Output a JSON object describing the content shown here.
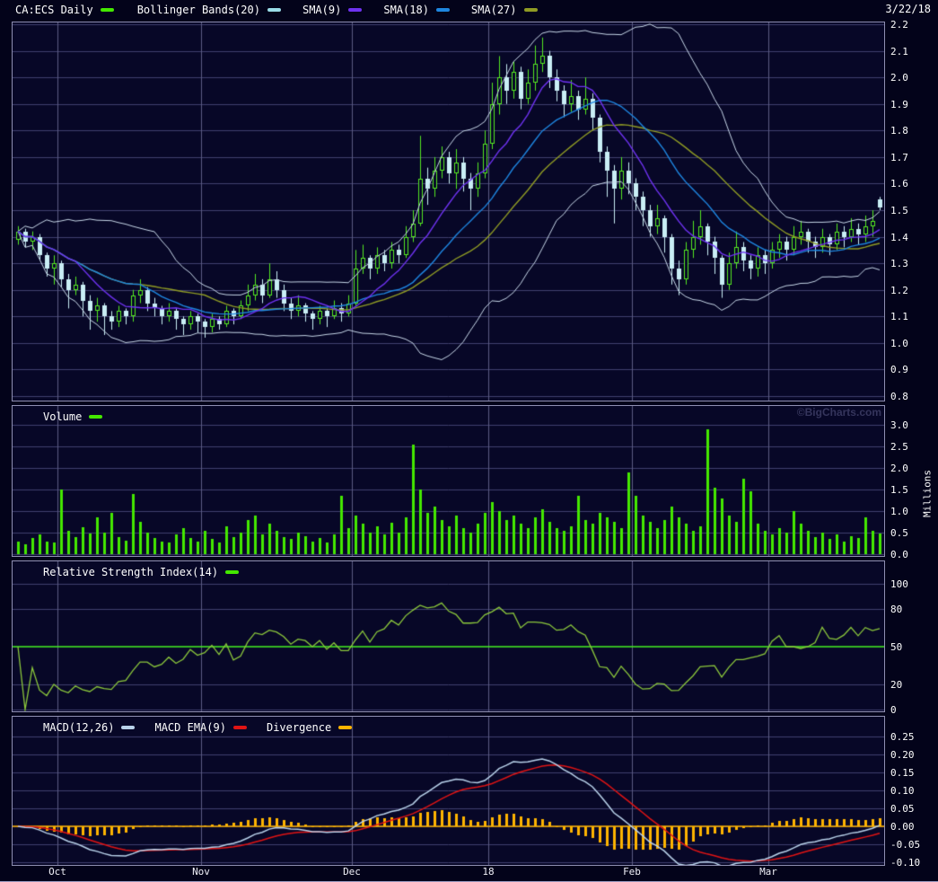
{
  "header": {
    "symbol_label": "CA:ECS Daily",
    "symbol_swatch": "#44e800",
    "date": "3/22/18",
    "overlays": [
      {
        "label": "Bollinger Bands(20)",
        "color": "#9adce8"
      },
      {
        "label": "SMA(9)",
        "color": "#6e32f0"
      },
      {
        "label": "SMA(18)",
        "color": "#1e86e0"
      },
      {
        "label": "SMA(27)",
        "color": "#8f9b24"
      }
    ]
  },
  "panels": {
    "volume": {
      "label": "Volume",
      "swatch": "#44e800",
      "unit_label": "Millions",
      "watermark": "©BigCharts.com",
      "y_ticks": [
        "3.0",
        "2.5",
        "2.0",
        "1.5",
        "1.0",
        "0.5",
        "0.0"
      ]
    },
    "rsi": {
      "label": "Relative Strength Index(14)",
      "swatch": "#44e800",
      "y_ticks": [
        "100",
        "80",
        "50",
        "20",
        "0"
      ]
    },
    "macd": {
      "legend": [
        {
          "label": "MACD(12,26)",
          "color": "#b9d2ea"
        },
        {
          "label": "MACD EMA(9)",
          "color": "#e01414"
        },
        {
          "label": "Divergence",
          "color": "#ffb400"
        }
      ],
      "y_ticks": [
        "0.25",
        "0.20",
        "0.15",
        "0.10",
        "0.05",
        "0.00",
        "-0.05",
        "-0.10"
      ]
    },
    "price": {
      "y_ticks": [
        "2.2",
        "2.1",
        "2.0",
        "1.9",
        "1.8",
        "1.7",
        "1.6",
        "1.5",
        "1.4",
        "1.3",
        "1.2",
        "1.1",
        "1.0",
        "0.9",
        "0.8"
      ]
    }
  },
  "chart_data": {
    "type": "candlestick",
    "symbol": "CA:ECS",
    "interval": "Daily",
    "as_of": "3/22/18",
    "price_axis": {
      "min": 0.8,
      "max": 2.2,
      "step": 0.1
    },
    "volume_axis": {
      "min": 0.0,
      "max": 3.0,
      "step": 0.5,
      "unit": "Millions"
    },
    "rsi_axis": {
      "ticks": [
        100,
        80,
        50,
        20,
        0
      ],
      "mid_line": 50
    },
    "macd_axis": {
      "min": -0.1,
      "max": 0.25,
      "step": 0.05
    },
    "indicators": {
      "bollinger_period": 20,
      "bollinger_stddev": 2,
      "sma_periods": [
        9,
        18,
        27
      ],
      "rsi_period": 14,
      "macd_fast": 12,
      "macd_slow": 26,
      "macd_signal": 9
    },
    "months": [
      {
        "label": "Oct",
        "bar": 6
      },
      {
        "label": "Nov",
        "bar": 26
      },
      {
        "label": "Dec",
        "bar": 47
      },
      {
        "label": "18",
        "bar": 66
      },
      {
        "label": "Feb",
        "bar": 86
      },
      {
        "label": "Mar",
        "bar": 105
      }
    ],
    "ohlc": [
      [
        1.39,
        1.44,
        1.37,
        1.42
      ],
      [
        1.42,
        1.43,
        1.36,
        1.38
      ],
      [
        1.38,
        1.42,
        1.35,
        1.4
      ],
      [
        1.4,
        1.41,
        1.31,
        1.33
      ],
      [
        1.33,
        1.34,
        1.25,
        1.28
      ],
      [
        1.28,
        1.33,
        1.22,
        1.3
      ],
      [
        1.3,
        1.31,
        1.21,
        1.24
      ],
      [
        1.24,
        1.26,
        1.13,
        1.2
      ],
      [
        1.2,
        1.25,
        1.18,
        1.22
      ],
      [
        1.22,
        1.23,
        1.1,
        1.16
      ],
      [
        1.16,
        1.18,
        1.05,
        1.12
      ],
      [
        1.12,
        1.17,
        1.08,
        1.14
      ],
      [
        1.14,
        1.15,
        1.03,
        1.1
      ],
      [
        1.1,
        1.12,
        1.05,
        1.08
      ],
      [
        1.08,
        1.14,
        1.06,
        1.12
      ],
      [
        1.12,
        1.13,
        1.07,
        1.1
      ],
      [
        1.1,
        1.2,
        1.08,
        1.18
      ],
      [
        1.18,
        1.24,
        1.15,
        1.2
      ],
      [
        1.2,
        1.21,
        1.12,
        1.15
      ],
      [
        1.15,
        1.17,
        1.1,
        1.13
      ],
      [
        1.13,
        1.14,
        1.07,
        1.1
      ],
      [
        1.1,
        1.15,
        1.08,
        1.12
      ],
      [
        1.12,
        1.13,
        1.05,
        1.09
      ],
      [
        1.09,
        1.1,
        1.03,
        1.07
      ],
      [
        1.07,
        1.12,
        1.05,
        1.1
      ],
      [
        1.1,
        1.11,
        1.04,
        1.08
      ],
      [
        1.08,
        1.09,
        1.02,
        1.06
      ],
      [
        1.06,
        1.11,
        1.04,
        1.09
      ],
      [
        1.09,
        1.1,
        1.05,
        1.07
      ],
      [
        1.07,
        1.14,
        1.06,
        1.12
      ],
      [
        1.12,
        1.13,
        1.07,
        1.1
      ],
      [
        1.1,
        1.16,
        1.09,
        1.14
      ],
      [
        1.14,
        1.22,
        1.12,
        1.18
      ],
      [
        1.18,
        1.26,
        1.16,
        1.22
      ],
      [
        1.22,
        1.24,
        1.15,
        1.18
      ],
      [
        1.18,
        1.3,
        1.17,
        1.24
      ],
      [
        1.24,
        1.27,
        1.17,
        1.2
      ],
      [
        1.2,
        1.22,
        1.12,
        1.15
      ],
      [
        1.15,
        1.17,
        1.09,
        1.12
      ],
      [
        1.12,
        1.18,
        1.1,
        1.14
      ],
      [
        1.14,
        1.15,
        1.08,
        1.11
      ],
      [
        1.11,
        1.12,
        1.05,
        1.09
      ],
      [
        1.09,
        1.14,
        1.07,
        1.12
      ],
      [
        1.12,
        1.13,
        1.06,
        1.1
      ],
      [
        1.1,
        1.16,
        1.09,
        1.13
      ],
      [
        1.13,
        1.15,
        1.08,
        1.11
      ],
      [
        1.11,
        1.18,
        1.1,
        1.15
      ],
      [
        1.15,
        1.35,
        1.14,
        1.28
      ],
      [
        1.28,
        1.37,
        1.26,
        1.32
      ],
      [
        1.32,
        1.33,
        1.24,
        1.28
      ],
      [
        1.28,
        1.36,
        1.26,
        1.33
      ],
      [
        1.33,
        1.35,
        1.27,
        1.3
      ],
      [
        1.3,
        1.38,
        1.28,
        1.35
      ],
      [
        1.35,
        1.37,
        1.3,
        1.33
      ],
      [
        1.33,
        1.44,
        1.32,
        1.4
      ],
      [
        1.4,
        1.5,
        1.38,
        1.45
      ],
      [
        1.45,
        1.78,
        1.44,
        1.62
      ],
      [
        1.62,
        1.66,
        1.52,
        1.58
      ],
      [
        1.58,
        1.7,
        1.55,
        1.65
      ],
      [
        1.65,
        1.74,
        1.62,
        1.7
      ],
      [
        1.7,
        1.72,
        1.6,
        1.64
      ],
      [
        1.64,
        1.73,
        1.58,
        1.68
      ],
      [
        1.68,
        1.7,
        1.57,
        1.62
      ],
      [
        1.62,
        1.64,
        1.5,
        1.58
      ],
      [
        1.58,
        1.68,
        1.55,
        1.64
      ],
      [
        1.64,
        1.8,
        1.62,
        1.75
      ],
      [
        1.75,
        1.98,
        1.73,
        1.9
      ],
      [
        1.9,
        2.08,
        1.86,
        2.0
      ],
      [
        2.0,
        2.05,
        1.9,
        1.95
      ],
      [
        1.95,
        2.06,
        1.92,
        2.02
      ],
      [
        2.02,
        2.04,
        1.88,
        1.92
      ],
      [
        1.92,
        2.03,
        1.9,
        1.98
      ],
      [
        1.98,
        2.12,
        1.95,
        2.05
      ],
      [
        2.05,
        2.15,
        2.02,
        2.08
      ],
      [
        2.08,
        2.1,
        1.96,
        2.0
      ],
      [
        2.0,
        2.03,
        1.91,
        1.95
      ],
      [
        1.95,
        1.97,
        1.85,
        1.9
      ],
      [
        1.9,
        1.99,
        1.87,
        1.93
      ],
      [
        1.93,
        1.95,
        1.84,
        1.88
      ],
      [
        1.88,
        2.0,
        1.86,
        1.92
      ],
      [
        1.92,
        1.94,
        1.8,
        1.85
      ],
      [
        1.85,
        1.86,
        1.68,
        1.72
      ],
      [
        1.72,
        1.74,
        1.55,
        1.65
      ],
      [
        1.65,
        1.67,
        1.45,
        1.58
      ],
      [
        1.58,
        1.7,
        1.54,
        1.65
      ],
      [
        1.65,
        1.68,
        1.56,
        1.6
      ],
      [
        1.6,
        1.62,
        1.5,
        1.55
      ],
      [
        1.55,
        1.57,
        1.44,
        1.5
      ],
      [
        1.5,
        1.52,
        1.4,
        1.44
      ],
      [
        1.44,
        1.52,
        1.41,
        1.47
      ],
      [
        1.47,
        1.48,
        1.34,
        1.4
      ],
      [
        1.4,
        1.41,
        1.22,
        1.28
      ],
      [
        1.28,
        1.31,
        1.18,
        1.24
      ],
      [
        1.24,
        1.38,
        1.22,
        1.35
      ],
      [
        1.35,
        1.46,
        1.32,
        1.4
      ],
      [
        1.4,
        1.5,
        1.37,
        1.44
      ],
      [
        1.44,
        1.45,
        1.33,
        1.38
      ],
      [
        1.38,
        1.4,
        1.26,
        1.32
      ],
      [
        1.32,
        1.33,
        1.17,
        1.22
      ],
      [
        1.22,
        1.34,
        1.2,
        1.3
      ],
      [
        1.3,
        1.42,
        1.28,
        1.36
      ],
      [
        1.36,
        1.38,
        1.27,
        1.31
      ],
      [
        1.31,
        1.33,
        1.24,
        1.28
      ],
      [
        1.28,
        1.36,
        1.25,
        1.33
      ],
      [
        1.33,
        1.35,
        1.26,
        1.3
      ],
      [
        1.3,
        1.38,
        1.28,
        1.35
      ],
      [
        1.35,
        1.41,
        1.32,
        1.38
      ],
      [
        1.38,
        1.4,
        1.31,
        1.35
      ],
      [
        1.35,
        1.44,
        1.33,
        1.4
      ],
      [
        1.4,
        1.46,
        1.37,
        1.42
      ],
      [
        1.42,
        1.43,
        1.34,
        1.38
      ],
      [
        1.38,
        1.4,
        1.32,
        1.36
      ],
      [
        1.36,
        1.43,
        1.34,
        1.4
      ],
      [
        1.4,
        1.41,
        1.33,
        1.37
      ],
      [
        1.37,
        1.45,
        1.35,
        1.42
      ],
      [
        1.42,
        1.44,
        1.36,
        1.4
      ],
      [
        1.4,
        1.47,
        1.38,
        1.43
      ],
      [
        1.43,
        1.45,
        1.37,
        1.41
      ],
      [
        1.41,
        1.48,
        1.38,
        1.44
      ],
      [
        1.44,
        1.5,
        1.4,
        1.46
      ],
      [
        1.54,
        1.55,
        1.5,
        1.51
      ]
    ],
    "volume_millions": [
      0.3,
      0.22,
      0.38,
      0.45,
      0.3,
      0.28,
      1.5,
      0.55,
      0.4,
      0.62,
      0.48,
      0.85,
      0.5,
      0.95,
      0.4,
      0.32,
      1.4,
      0.75,
      0.5,
      0.38,
      0.3,
      0.28,
      0.45,
      0.6,
      0.38,
      0.3,
      0.55,
      0.35,
      0.28,
      0.65,
      0.4,
      0.5,
      0.8,
      0.9,
      0.45,
      0.7,
      0.55,
      0.4,
      0.35,
      0.5,
      0.42,
      0.3,
      0.38,
      0.28,
      0.45,
      1.35,
      0.6,
      0.9,
      0.7,
      0.5,
      0.65,
      0.45,
      0.72,
      0.5,
      0.85,
      2.55,
      1.5,
      0.95,
      1.1,
      0.8,
      0.65,
      0.9,
      0.6,
      0.5,
      0.7,
      0.95,
      1.2,
      1.0,
      0.8,
      0.9,
      0.7,
      0.6,
      0.85,
      1.05,
      0.75,
      0.6,
      0.55,
      0.65,
      1.35,
      0.8,
      0.7,
      0.95,
      0.85,
      0.75,
      0.6,
      1.9,
      1.35,
      0.9,
      0.75,
      0.6,
      0.8,
      1.1,
      0.85,
      0.7,
      0.55,
      0.65,
      2.9,
      1.55,
      1.3,
      0.9,
      0.75,
      1.75,
      1.45,
      0.7,
      0.55,
      0.45,
      0.6,
      0.5,
      1.0,
      0.7,
      0.55,
      0.4,
      0.5,
      0.35,
      0.45,
      0.3,
      0.42,
      0.38,
      0.85,
      0.55,
      0.48
    ],
    "colors": {
      "background": "#070727",
      "page": "#03031a",
      "grid": "#41416f",
      "month_grid": "#5c5c84",
      "panel_border": "#8f8fb2",
      "candle_up": "#55e822",
      "candle_down": "#c9eef5",
      "volume_bar": "#44e800",
      "bollinger": "#c7d7e8",
      "sma9": "#6e32f0",
      "sma18": "#1e86e0",
      "sma27": "#8f9b24",
      "rsi_line": "#8cc83c",
      "rsi_mid_line": "#44f022",
      "macd_line": "#b9d2ea",
      "macd_signal": "#e01414",
      "divergence": "#ffb400",
      "axis_text": "#ffffff",
      "watermark_text": "#35355c"
    }
  }
}
